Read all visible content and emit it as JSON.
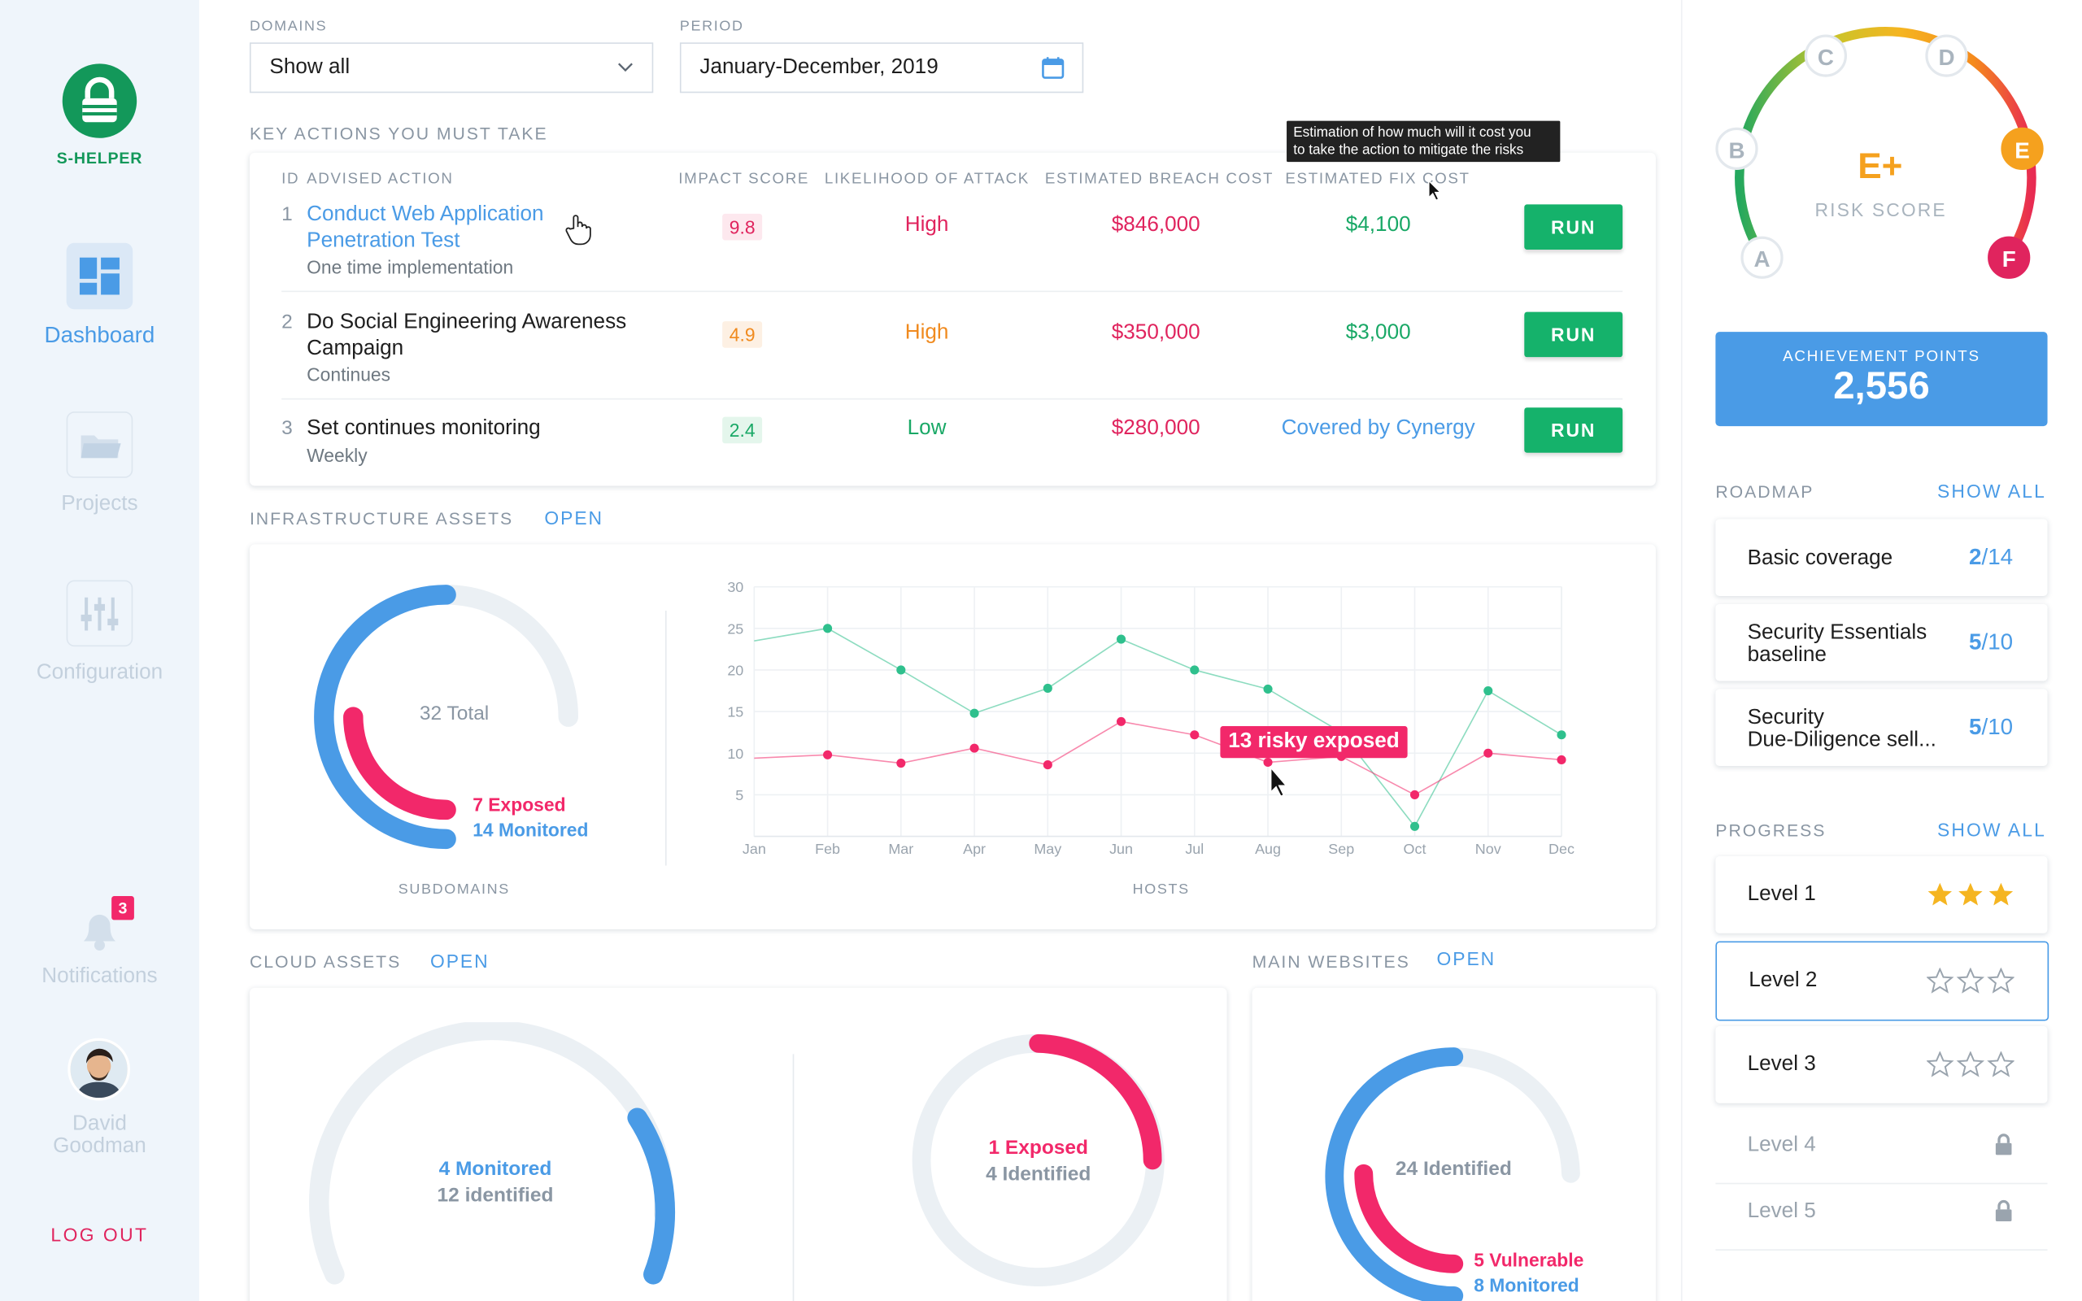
{
  "app": {
    "name": "S-HELPER"
  },
  "sidebar": {
    "items": [
      {
        "label": "Dashboard",
        "icon": "dashboard-icon",
        "active": true
      },
      {
        "label": "Projects",
        "icon": "folder-icon"
      },
      {
        "label": "Configuration",
        "icon": "sliders-icon"
      },
      {
        "label": "Notifications",
        "icon": "bell-icon",
        "badge": "3"
      }
    ],
    "user": {
      "name_line1": "David",
      "name_line2": "Goodman"
    },
    "logout": "LOG OUT"
  },
  "filters": {
    "domains": {
      "label": "DOMAINS",
      "value": "Show all"
    },
    "period": {
      "label": "PERIOD",
      "value": "January-December, 2019"
    }
  },
  "key_actions": {
    "title": "KEY ACTIONS YOU MUST TAKE",
    "tooltip_line1": "Estimation of how much will it cost you",
    "tooltip_line2": "to take the action to mitigate the risks",
    "columns": {
      "id": "ID",
      "action": "ADVISED ACTION",
      "impact": "IMPACT SCORE",
      "likelihood": "LIKELIHOOD OF ATTACK",
      "breach": "ESTIMATED BREACH COST",
      "fix": "ESTIMATED FIX COST"
    },
    "rows": [
      {
        "id": "1",
        "title": "Conduct Web Application Penetration Test",
        "sub": "One time implementation",
        "impact": "9.8",
        "likelihood": "High",
        "breach": "$846,000",
        "fix": "$4,100",
        "run": "RUN"
      },
      {
        "id": "2",
        "title": "Do Social Engineering Awareness Campaign",
        "sub": "Continues",
        "impact": "4.9",
        "likelihood": "High",
        "breach": "$350,000",
        "fix": "$3,000",
        "run": "RUN"
      },
      {
        "id": "3",
        "title": "Set continues monitoring",
        "sub": "Weekly",
        "impact": "2.4",
        "likelihood": "Low",
        "breach": "$280,000",
        "fix": "Covered by Cynergy",
        "run": "RUN"
      }
    ]
  },
  "infrastructure": {
    "title": "INFRASTRUCTURE ASSETS",
    "open": "OPEN",
    "subdomains": {
      "label": "SUBDOMAINS",
      "total": "32 Total",
      "exposed": "7 Exposed",
      "monitored": "14 Monitored",
      "total_n": 32,
      "exposed_n": 7,
      "monitored_n": 14
    },
    "hosts_label": "HOSTS",
    "annotation": "13 risky exposed"
  },
  "chart_data": {
    "type": "line",
    "categories": [
      "Jan",
      "Feb",
      "Mar",
      "Apr",
      "May",
      "Jun",
      "Jul",
      "Aug",
      "Sep",
      "Oct",
      "Nov",
      "Dec"
    ],
    "yticks": [
      5,
      10,
      15,
      20,
      25,
      30
    ],
    "ylim": [
      0,
      30
    ],
    "grid": true,
    "series": [
      {
        "color": "#2fc08d",
        "values": [
          23.5,
          25,
          20,
          14.8,
          17.8,
          23.7,
          20,
          17.7,
          12.5,
          1.2,
          17.5,
          12.2
        ]
      },
      {
        "color": "#f2286a",
        "values": [
          9.4,
          9.8,
          8.8,
          10.6,
          8.6,
          13.8,
          12.2,
          8.9,
          9.6,
          5,
          10,
          9.2
        ]
      }
    ]
  },
  "cloud": {
    "title": "CLOUD ASSETS",
    "open": "OPEN",
    "gauge1": {
      "line1": "4 Monitored",
      "line2": "12 identified"
    },
    "gauge2": {
      "line1": "1 Exposed",
      "line2": "4 Identified"
    }
  },
  "websites": {
    "title": "MAIN WEBSITES",
    "open": "OPEN",
    "identified": "24 Identified",
    "vulnerable": "5 Vulnerable",
    "monitored": "8 Monitored"
  },
  "risk": {
    "score": "E+",
    "label": "RISK SCORE",
    "grades": [
      "A",
      "B",
      "C",
      "D",
      "E",
      "F"
    ]
  },
  "achievement": {
    "label": "ACHIEVEMENT POINTS",
    "value": "2,556"
  },
  "roadmap": {
    "title": "ROADMAP",
    "show_all": "SHOW ALL",
    "items": [
      {
        "line1": "Basic coverage",
        "line2": "",
        "done": "2",
        "total": "/14"
      },
      {
        "line1": "Security Essentials",
        "line2": "baseline",
        "done": "5",
        "total": "/10"
      },
      {
        "line1": "Security",
        "line2": "Due-Diligence sell...",
        "done": "5",
        "total": "/10"
      }
    ]
  },
  "progress": {
    "title": "PROGRESS",
    "show_all": "SHOW ALL",
    "levels": [
      {
        "name": "Level 1",
        "stars": 3
      },
      {
        "name": "Level 2",
        "stars": 0
      },
      {
        "name": "Level 3",
        "stars": 0
      },
      {
        "name": "Level 4",
        "locked": true
      },
      {
        "name": "Level 5",
        "locked": true
      }
    ]
  }
}
